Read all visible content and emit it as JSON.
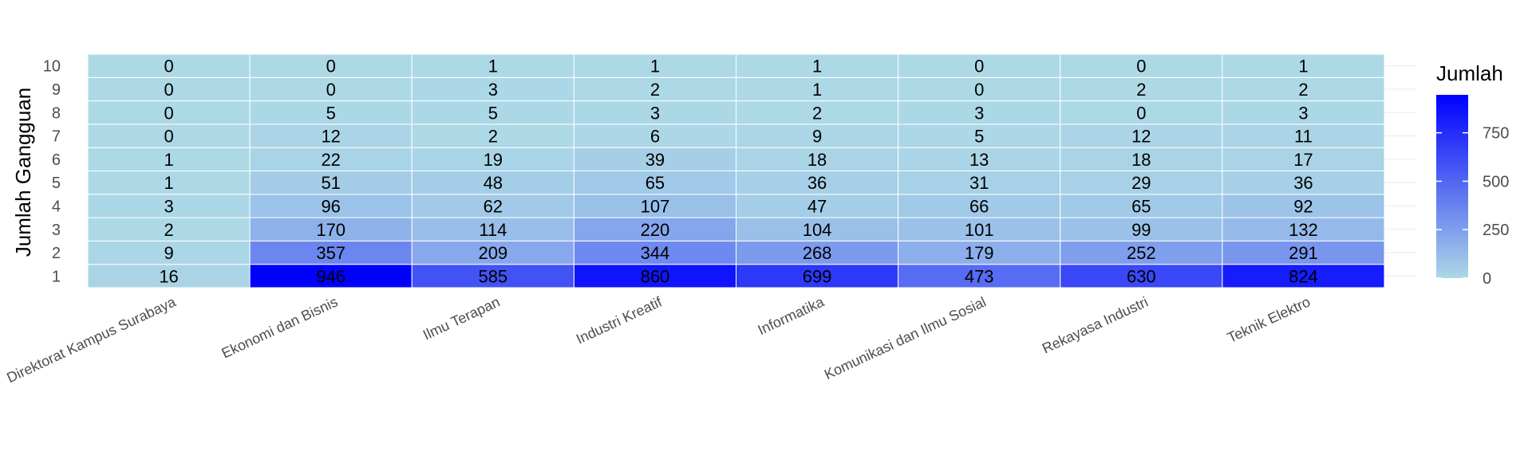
{
  "chart_data": {
    "type": "heatmap",
    "title": "",
    "xlabel": "",
    "ylabel": "Jumlah Gangguan",
    "categories": [
      "Direktorat Kampus Surabaya",
      "Ekonomi dan Bisnis",
      "Ilmu Terapan",
      "Industri Kreatif",
      "Informatika",
      "Komunikasi dan Ilmu Sosial",
      "Rekayasa Industri",
      "Teknik Elektro"
    ],
    "y": [
      "1",
      "2",
      "3",
      "4",
      "5",
      "6",
      "7",
      "8",
      "9",
      "10"
    ],
    "values": [
      [
        16,
        9,
        2,
        3,
        1,
        1,
        0,
        0,
        0,
        0
      ],
      [
        946,
        357,
        170,
        96,
        51,
        22,
        12,
        5,
        0,
        0
      ],
      [
        585,
        209,
        114,
        62,
        48,
        19,
        2,
        5,
        3,
        1
      ],
      [
        860,
        344,
        220,
        107,
        65,
        39,
        6,
        3,
        2,
        1
      ],
      [
        699,
        268,
        104,
        47,
        36,
        18,
        9,
        2,
        1,
        1
      ],
      [
        473,
        179,
        101,
        66,
        31,
        13,
        5,
        3,
        0,
        0
      ],
      [
        630,
        252,
        99,
        65,
        29,
        18,
        12,
        0,
        2,
        0
      ],
      [
        824,
        291,
        132,
        92,
        36,
        17,
        11,
        3,
        2,
        1
      ]
    ],
    "legend": {
      "title": "Jumlah",
      "position": "right",
      "ticks": [
        0,
        250,
        500,
        750
      ],
      "range": [
        0,
        946
      ],
      "low_color": "#add8e6",
      "high_color": "#0000ff"
    },
    "grid": true
  }
}
